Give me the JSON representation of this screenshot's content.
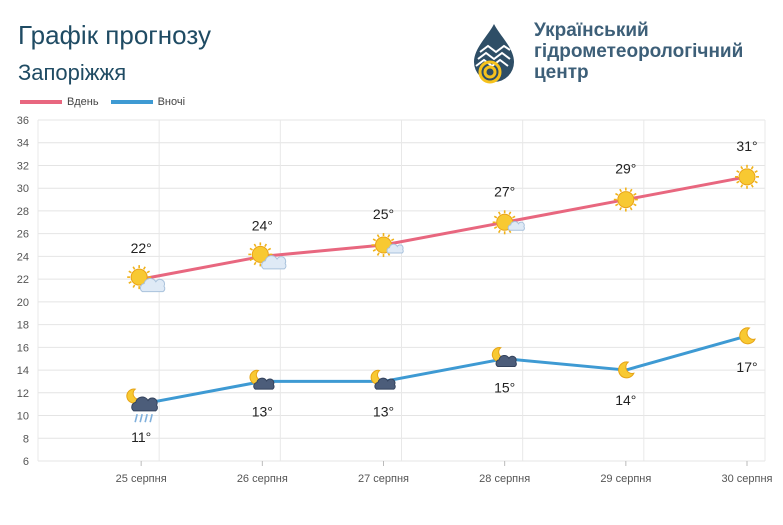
{
  "header": {
    "title": "Графік прогнозу",
    "city": "Запоріжжя",
    "org_line1": "Український",
    "org_line2": "гідрометеорологічний",
    "org_line3": "центр"
  },
  "legend": [
    {
      "name": "Вдень",
      "color": "#e8677f"
    },
    {
      "name": "Вночі",
      "color": "#3e9ad3"
    }
  ],
  "chart_data": {
    "type": "line",
    "categories": [
      "25 серпня",
      "26 серпня",
      "27 серпня",
      "28 серпня",
      "29 серпня",
      "30 серпня"
    ],
    "series": [
      {
        "name": "Вдень",
        "color": "#e8677f",
        "values": [
          22,
          24,
          25,
          27,
          29,
          31
        ],
        "labels": [
          "22°",
          "24°",
          "25°",
          "27°",
          "29°",
          "31°"
        ],
        "icons": [
          "sun-cloud",
          "sun-cloud",
          "sun-cloud-small",
          "sun-cloud-small",
          "sun",
          "sun"
        ]
      },
      {
        "name": "Вночі",
        "color": "#3e9ad3",
        "values": [
          11,
          13,
          13,
          15,
          14,
          17
        ],
        "labels": [
          "11°",
          "13°",
          "13°",
          "15°",
          "14°",
          "17°"
        ],
        "icons": [
          "moon-cloud-rain",
          "moon-cloud",
          "moon-cloud",
          "moon-cloud",
          "moon",
          "moon"
        ]
      }
    ],
    "ylim": [
      6,
      36
    ],
    "ytick_step": 2,
    "grid": true,
    "legend_position": "top-left"
  }
}
